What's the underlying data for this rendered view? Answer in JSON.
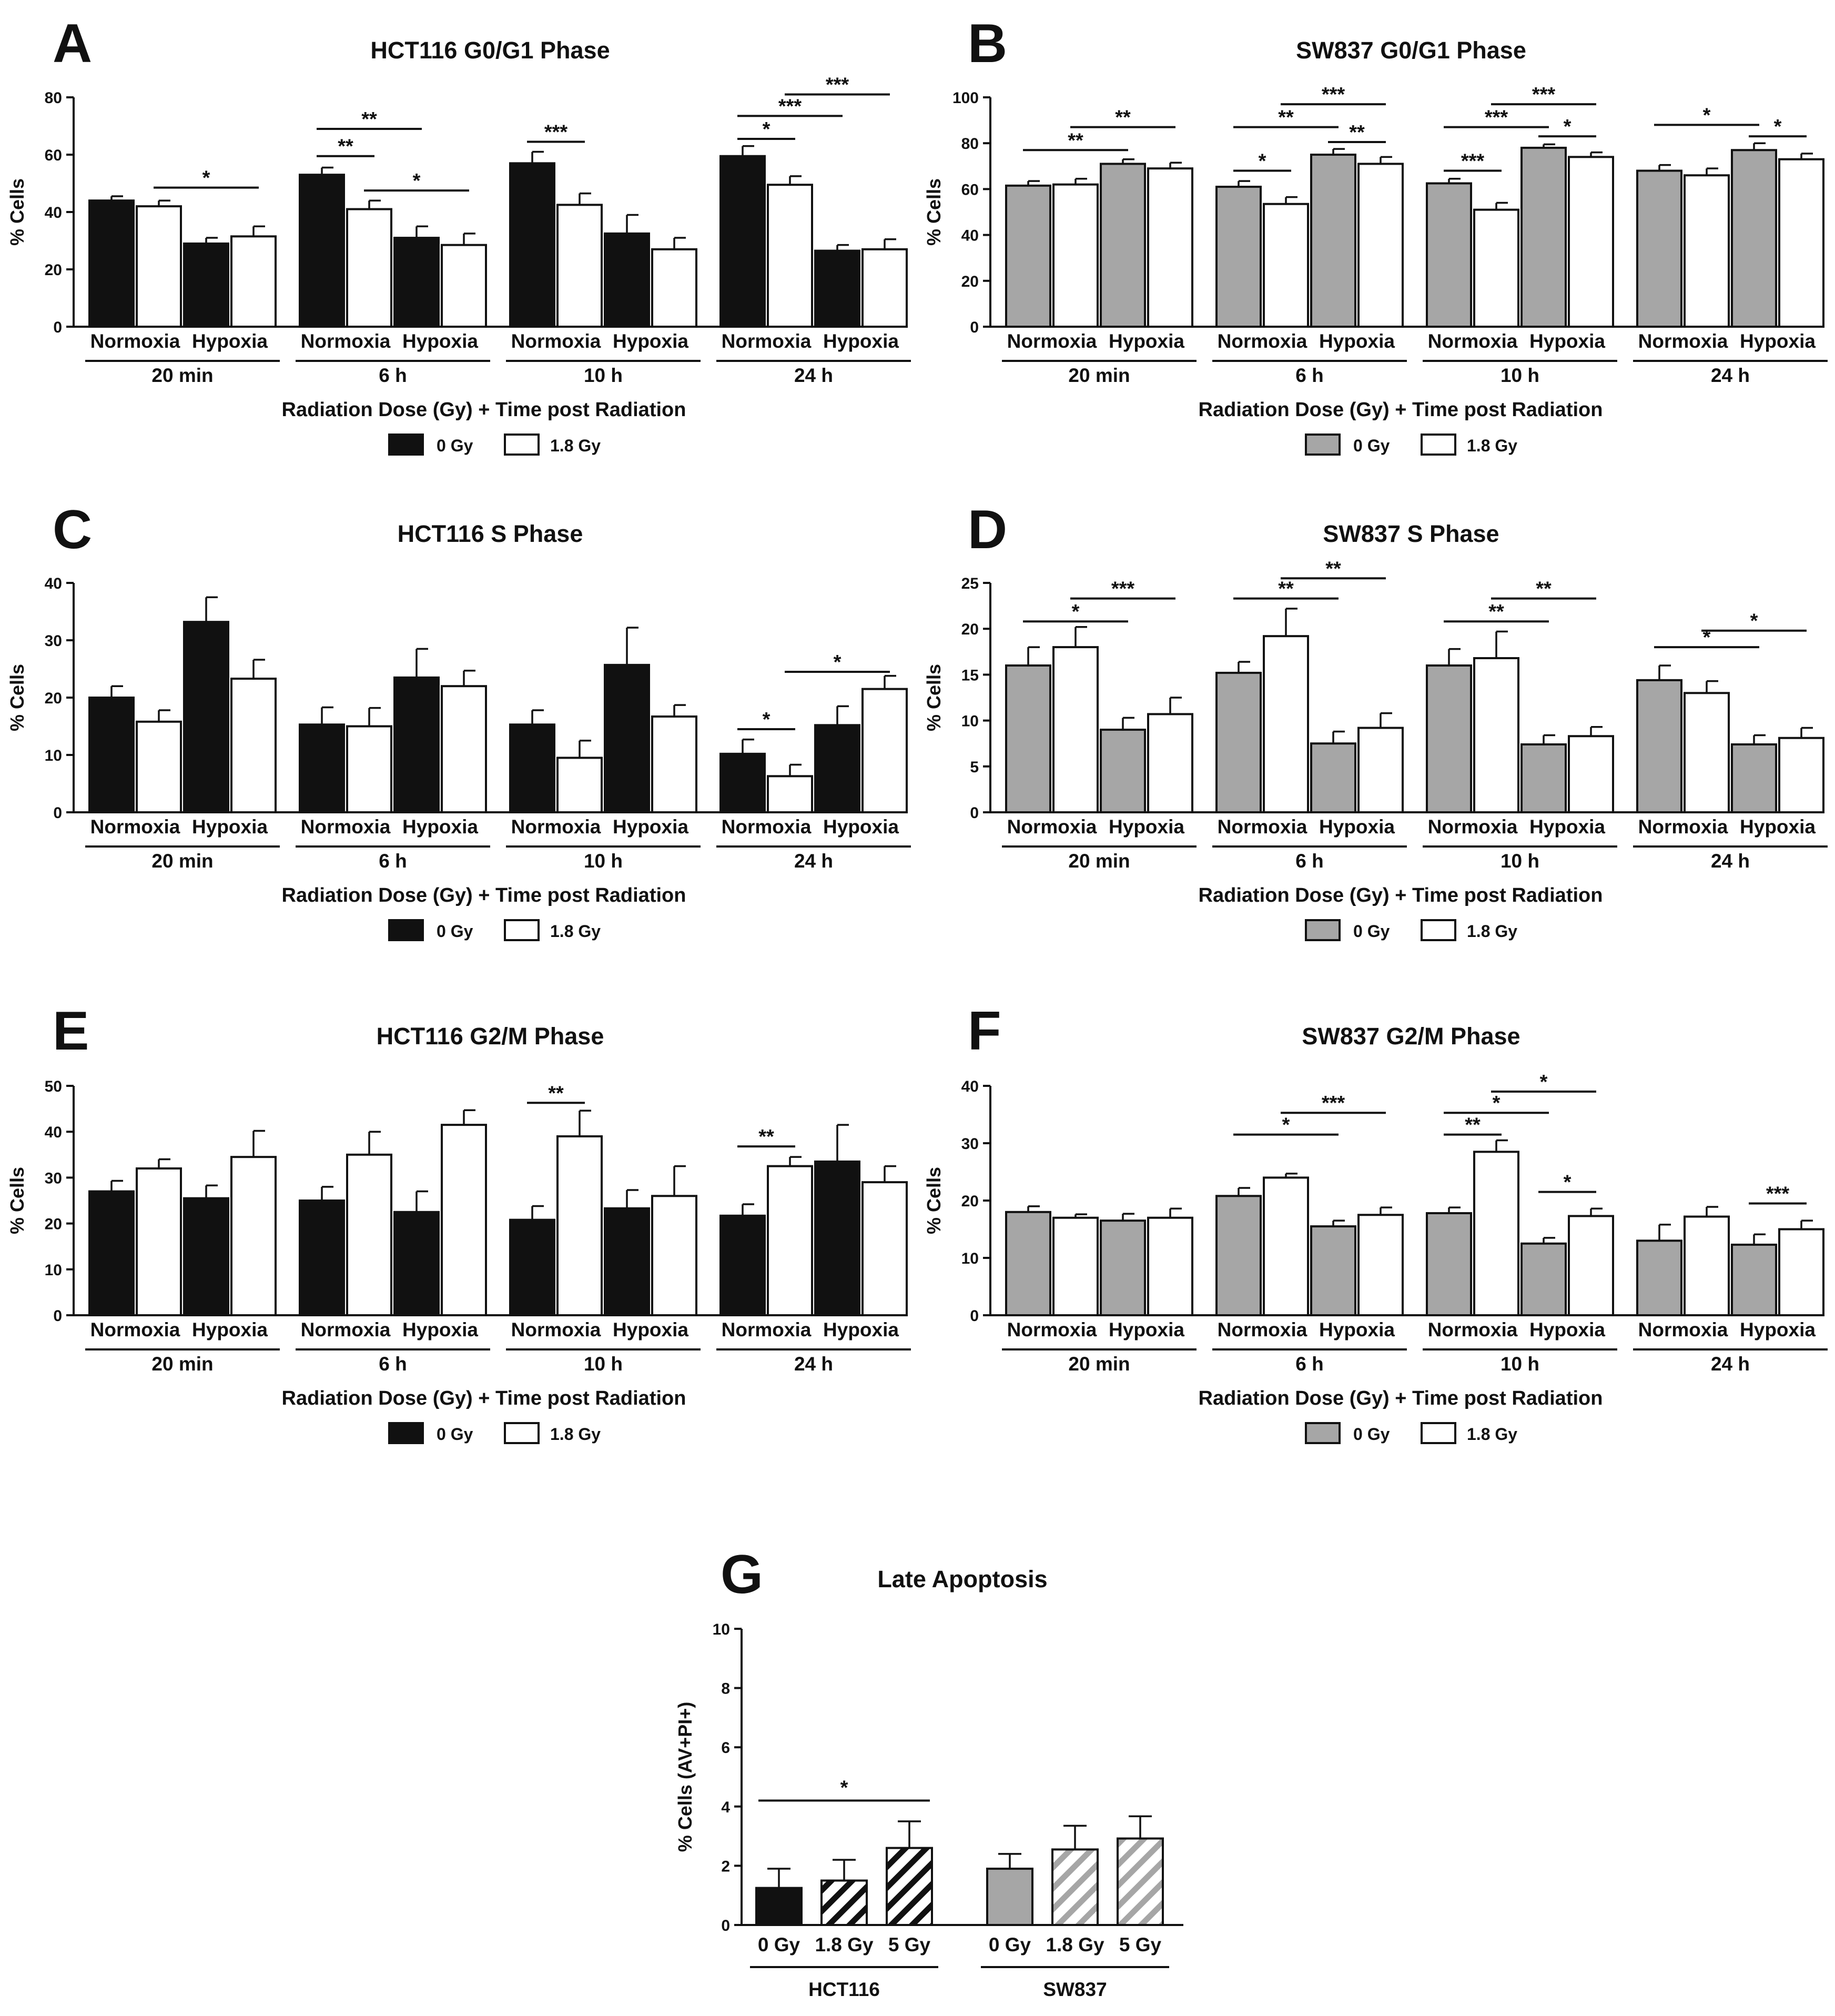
{
  "chart_data": [
    {
      "panel": "A",
      "title": "HCT116 G0/G1 Phase",
      "type": "bar",
      "ylabel": "% Cells",
      "ylim": [
        0,
        80
      ],
      "yticks": [
        0,
        20,
        40,
        60,
        80
      ],
      "xlabel": "Radiation Dose (Gy) + Time post Radiation",
      "groups": [
        "20 min",
        "6 h",
        "10 h",
        "24 h"
      ],
      "categories": [
        "Normoxia",
        "Hypoxia"
      ],
      "legend": [
        "0 Gy",
        "1.8 Gy"
      ],
      "color_0gy": "#111111",
      "values": [
        [
          44,
          42,
          29,
          31.5
        ],
        [
          53,
          41,
          31,
          28.5
        ],
        [
          57,
          42.5,
          32.5,
          27
        ],
        [
          59.5,
          49.5,
          26.5,
          27
        ]
      ],
      "errors": [
        [
          1.5,
          2,
          2,
          3.5
        ],
        [
          2.5,
          3,
          4,
          4
        ],
        [
          4,
          4,
          6.5,
          4
        ],
        [
          3.5,
          3,
          2,
          3.5
        ]
      ],
      "significance": [
        {
          "g": 0,
          "from": 1,
          "to": 3,
          "y": 48.5,
          "label": "*"
        },
        {
          "g": 1,
          "from": 0,
          "to": 1,
          "y": 59.5,
          "label": "**"
        },
        {
          "g": 1,
          "from": 0,
          "to": 2,
          "y": 69,
          "label": "**"
        },
        {
          "g": 1,
          "from": 1,
          "to": 3,
          "y": 47.5,
          "label": "*"
        },
        {
          "g": 2,
          "from": 0,
          "to": 1,
          "y": 64.5,
          "label": "***"
        },
        {
          "g": 3,
          "from": 0,
          "to": 1,
          "y": 65.5,
          "label": "*"
        },
        {
          "g": 3,
          "from": 0,
          "to": 2,
          "y": 73.5,
          "label": "***"
        },
        {
          "g": 3,
          "from": 1,
          "to": 3,
          "y": 81,
          "label": "***"
        }
      ]
    },
    {
      "panel": "B",
      "title": "SW837 G0/G1 Phase",
      "type": "bar",
      "ylabel": "% Cells",
      "ylim": [
        0,
        100
      ],
      "yticks": [
        0,
        20,
        40,
        60,
        80,
        100
      ],
      "xlabel": "Radiation Dose (Gy) + Time post Radiation",
      "groups": [
        "20 min",
        "6 h",
        "10 h",
        "24 h"
      ],
      "categories": [
        "Normoxia",
        "Hypoxia"
      ],
      "legend": [
        "0 Gy",
        "1.8 Gy"
      ],
      "color_0gy": "#a6a6a6",
      "values": [
        [
          61.5,
          62,
          71,
          69
        ],
        [
          61,
          53.5,
          75,
          71
        ],
        [
          62.5,
          51,
          78,
          74
        ],
        [
          68,
          66,
          77,
          73
        ]
      ],
      "errors": [
        [
          2,
          2.5,
          2,
          2.5
        ],
        [
          2.5,
          3,
          2.5,
          3
        ],
        [
          2,
          3,
          1.5,
          2
        ],
        [
          2.5,
          3,
          3,
          2.5
        ]
      ],
      "significance": [
        {
          "g": 0,
          "from": 0,
          "to": 2,
          "y": 77,
          "label": "**"
        },
        {
          "g": 0,
          "from": 1,
          "to": 3,
          "y": 87,
          "label": "**"
        },
        {
          "g": 1,
          "from": 0,
          "to": 1,
          "y": 68,
          "label": "*"
        },
        {
          "g": 1,
          "from": 0,
          "to": 2,
          "y": 87,
          "label": "**"
        },
        {
          "g": 1,
          "from": 1,
          "to": 3,
          "y": 97,
          "label": "***"
        },
        {
          "g": 1,
          "from": 2,
          "to": 3,
          "y": 80.5,
          "label": "**"
        },
        {
          "g": 2,
          "from": 0,
          "to": 1,
          "y": 68,
          "label": "***"
        },
        {
          "g": 2,
          "from": 0,
          "to": 2,
          "y": 87,
          "label": "***"
        },
        {
          "g": 2,
          "from": 1,
          "to": 3,
          "y": 97,
          "label": "***"
        },
        {
          "g": 2,
          "from": 2,
          "to": 3,
          "y": 83,
          "label": "*"
        },
        {
          "g": 3,
          "from": 0,
          "to": 2,
          "y": 88,
          "label": "*"
        },
        {
          "g": 3,
          "from": 2,
          "to": 3,
          "y": 83,
          "label": "*"
        }
      ]
    },
    {
      "panel": "C",
      "title": "HCT116 S Phase",
      "type": "bar",
      "ylabel": "% Cells",
      "ylim": [
        0,
        40
      ],
      "yticks": [
        0,
        10,
        20,
        30,
        40
      ],
      "xlabel": "Radiation Dose (Gy) + Time post Radiation",
      "groups": [
        "20 min",
        "6 h",
        "10 h",
        "24 h"
      ],
      "categories": [
        "Normoxia",
        "Hypoxia"
      ],
      "legend": [
        "0 Gy",
        "1.8 Gy"
      ],
      "color_0gy": "#111111",
      "values": [
        [
          20,
          15.8,
          33.2,
          23.3
        ],
        [
          15.3,
          15,
          23.5,
          22
        ],
        [
          15.3,
          9.5,
          25.7,
          16.7
        ],
        [
          10.2,
          6.3,
          15.2,
          21.5
        ]
      ],
      "errors": [
        [
          2,
          2,
          4.3,
          3.3
        ],
        [
          3,
          3.2,
          5,
          2.7
        ],
        [
          2.5,
          3,
          6.5,
          2
        ],
        [
          2.5,
          2,
          3.3,
          2.3
        ]
      ],
      "significance": [
        {
          "g": 3,
          "from": 0,
          "to": 1,
          "y": 14.5,
          "label": "*"
        },
        {
          "g": 3,
          "from": 1,
          "to": 3,
          "y": 24.5,
          "label": "*"
        }
      ]
    },
    {
      "panel": "D",
      "title": "SW837 S Phase",
      "type": "bar",
      "ylabel": "% Cells",
      "ylim": [
        0,
        25
      ],
      "yticks": [
        0,
        5,
        10,
        15,
        20,
        25
      ],
      "xlabel": "Radiation Dose (Gy) + Time post Radiation",
      "groups": [
        "20 min",
        "6 h",
        "10 h",
        "24 h"
      ],
      "categories": [
        "Normoxia",
        "Hypoxia"
      ],
      "legend": [
        "0 Gy",
        "1.8 Gy"
      ],
      "color_0gy": "#a6a6a6",
      "values": [
        [
          16,
          18,
          9,
          10.7
        ],
        [
          15.2,
          19.2,
          7.5,
          9.2
        ],
        [
          16,
          16.8,
          7.4,
          8.3
        ],
        [
          14.4,
          13,
          7.4,
          8.1
        ]
      ],
      "errors": [
        [
          2,
          2.2,
          1.3,
          1.8
        ],
        [
          1.2,
          3,
          1.3,
          1.6
        ],
        [
          1.8,
          2.9,
          1,
          1
        ],
        [
          1.6,
          1.3,
          1,
          1.1
        ]
      ],
      "significance": [
        {
          "g": 0,
          "from": 0,
          "to": 2,
          "y": 20.8,
          "label": "*"
        },
        {
          "g": 0,
          "from": 1,
          "to": 3,
          "y": 23.3,
          "label": "***"
        },
        {
          "g": 1,
          "from": 0,
          "to": 2,
          "y": 23.3,
          "label": "**"
        },
        {
          "g": 1,
          "from": 1,
          "to": 3,
          "y": 25.5,
          "label": "**"
        },
        {
          "g": 2,
          "from": 0,
          "to": 2,
          "y": 20.8,
          "label": "**"
        },
        {
          "g": 2,
          "from": 1,
          "to": 3,
          "y": 23.3,
          "label": "**"
        },
        {
          "g": 3,
          "from": 0,
          "to": 2,
          "y": 18,
          "label": "*"
        },
        {
          "g": 3,
          "from": 1,
          "to": 3,
          "y": 19.8,
          "label": "*"
        }
      ]
    },
    {
      "panel": "E",
      "title": "HCT116 G2/M Phase",
      "type": "bar",
      "ylabel": "% Cells",
      "ylim": [
        0,
        50
      ],
      "yticks": [
        0,
        10,
        20,
        30,
        40,
        50
      ],
      "xlabel": "Radiation Dose (Gy) + Time post Radiation",
      "groups": [
        "20 min",
        "6 h",
        "10 h",
        "24 h"
      ],
      "categories": [
        "Normoxia",
        "Hypoxia"
      ],
      "legend": [
        "0 Gy",
        "1.8 Gy"
      ],
      "color_0gy": "#111111",
      "values": [
        [
          27,
          32,
          25.5,
          34.5
        ],
        [
          25,
          35,
          22.5,
          41.5
        ],
        [
          20.8,
          39,
          23.3,
          26
        ],
        [
          21.7,
          32.5,
          33.5,
          29
        ]
      ],
      "errors": [
        [
          2.3,
          2,
          2.8,
          5.7
        ],
        [
          3,
          5,
          4.5,
          3.2
        ],
        [
          3,
          5.6,
          4,
          6.5
        ],
        [
          2.5,
          2,
          8,
          3.5
        ]
      ],
      "significance": [
        {
          "g": 2,
          "from": 0,
          "to": 1,
          "y": 46.3,
          "label": "**"
        },
        {
          "g": 3,
          "from": 0,
          "to": 1,
          "y": 36.8,
          "label": "**"
        }
      ]
    },
    {
      "panel": "F",
      "title": "SW837 G2/M Phase",
      "type": "bar",
      "ylabel": "% Cells",
      "ylim": [
        0,
        40
      ],
      "yticks": [
        0,
        10,
        20,
        30,
        40
      ],
      "xlabel": "Radiation Dose (Gy) + Time post Radiation",
      "groups": [
        "20 min",
        "6 h",
        "10 h",
        "24 h"
      ],
      "categories": [
        "Normoxia",
        "Hypoxia"
      ],
      "legend": [
        "0 Gy",
        "1.8 Gy"
      ],
      "color_0gy": "#a6a6a6",
      "values": [
        [
          18,
          17,
          16.5,
          17
        ],
        [
          20.8,
          24,
          15.5,
          17.5
        ],
        [
          17.8,
          28.5,
          12.5,
          17.3
        ],
        [
          13,
          17.2,
          12.3,
          15
        ]
      ],
      "errors": [
        [
          1,
          0.6,
          1.2,
          1.6
        ],
        [
          1.4,
          0.7,
          1,
          1.3
        ],
        [
          1,
          2,
          1,
          1.3
        ],
        [
          2.8,
          1.7,
          1.8,
          1.5
        ]
      ],
      "significance": [
        {
          "g": 1,
          "from": 0,
          "to": 2,
          "y": 31.5,
          "label": "*"
        },
        {
          "g": 1,
          "from": 1,
          "to": 3,
          "y": 35.3,
          "label": "***"
        },
        {
          "g": 2,
          "from": 0,
          "to": 1,
          "y": 31.5,
          "label": "**"
        },
        {
          "g": 2,
          "from": 0,
          "to": 2,
          "y": 35.3,
          "label": "*"
        },
        {
          "g": 2,
          "from": 1,
          "to": 3,
          "y": 39,
          "label": "*"
        },
        {
          "g": 2,
          "from": 2,
          "to": 3,
          "y": 21.5,
          "label": "*"
        },
        {
          "g": 3,
          "from": 2,
          "to": 3,
          "y": 19.5,
          "label": "***"
        }
      ]
    },
    {
      "panel": "G",
      "title": "Late Apoptosis",
      "type": "bar",
      "ylabel": "% Cells (AV+PI+)",
      "ylim": [
        0,
        10
      ],
      "yticks": [
        0,
        2,
        4,
        6,
        8,
        10
      ],
      "groups": [
        "HCT116",
        "SW837"
      ],
      "categories": [
        "0 Gy",
        "1.8 Gy",
        "5 Gy"
      ],
      "values": [
        [
          1.25,
          1.5,
          2.6
        ],
        [
          1.9,
          2.55,
          2.92
        ]
      ],
      "errors": [
        [
          0.65,
          0.7,
          0.9
        ],
        [
          0.5,
          0.8,
          0.75
        ]
      ],
      "colors": [
        "#111111",
        "#a6a6a6"
      ],
      "significance": [
        {
          "g": 0,
          "from": 0,
          "to": 2,
          "y": 4.2,
          "label": "*"
        }
      ]
    }
  ]
}
